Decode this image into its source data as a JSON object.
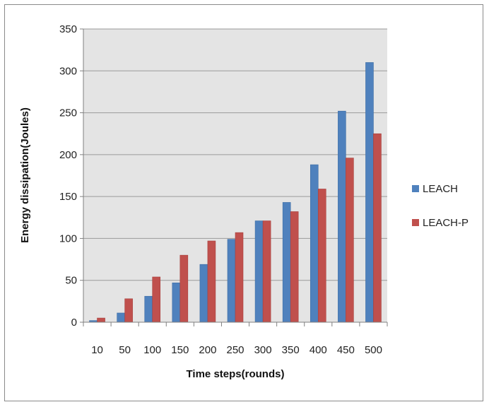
{
  "chart_data": {
    "type": "bar",
    "title": "",
    "xlabel": "Time steps(rounds)",
    "ylabel": "Energy dissipation(Joules)",
    "categories": [
      "10",
      "50",
      "100",
      "150",
      "200",
      "250",
      "300",
      "350",
      "400",
      "450",
      "500"
    ],
    "series": [
      {
        "name": "LEACH",
        "color": "#4f81bd",
        "values": [
          2,
          11,
          31,
          47,
          69,
          99,
          121,
          143,
          188,
          252,
          310
        ]
      },
      {
        "name": "LEACH-P",
        "color": "#c0504d",
        "values": [
          5,
          28,
          54,
          80,
          97,
          107,
          121,
          132,
          159,
          196,
          225
        ]
      }
    ],
    "ylim": [
      0,
      350
    ],
    "yticks": [
      0,
      50,
      100,
      150,
      200,
      250,
      300,
      350
    ],
    "grid": true,
    "legend": "right"
  }
}
